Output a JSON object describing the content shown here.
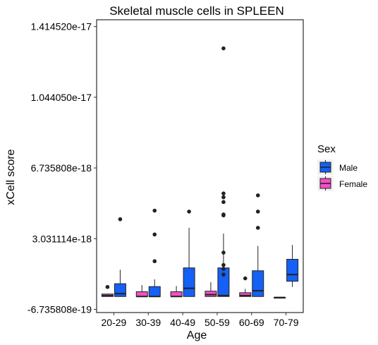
{
  "chart_data": {
    "type": "box",
    "title": "Skeletal muscle cells in SPLEEN",
    "xlabel": "Age",
    "ylabel": "xCell score",
    "categories": [
      "20-29",
      "30-39",
      "40-49",
      "50-59",
      "60-69",
      "70-79"
    ],
    "ylim": [
      -8.4e-19,
      1.45e-17
    ],
    "y_ticks": [
      -6.735808e-19,
      3.031114e-18,
      6.735808e-18,
      1.04405e-17,
      1.41452e-17
    ],
    "y_tick_labels": [
      "-6.735808e-19",
      "3.031114e-18",
      "6.735808e-18",
      "1.044050e-17",
      "1.414520e-17"
    ],
    "grid": false,
    "legend": {
      "title": "Sex",
      "position": "right",
      "entries": [
        {
          "name": "Male",
          "color": "#1560f5"
        },
        {
          "name": "Female",
          "color": "#f24fc4"
        }
      ]
    },
    "series": [
      {
        "name": "Male",
        "color": "#1560f5",
        "boxes": [
          {
            "category": "20-29",
            "whisker_low": 0,
            "q1": 0,
            "median": 1.5e-19,
            "q3": 6.7e-19,
            "whisker_high": 1.4e-18,
            "outliers": [
              4.05e-18
            ]
          },
          {
            "category": "30-39",
            "whisker_low": 0,
            "q1": 0,
            "median": 0,
            "q3": 5.2e-19,
            "whisker_high": 9e-19,
            "outliers": [
              4.5e-18,
              3.25e-18,
              1.85e-18
            ]
          },
          {
            "category": "40-49",
            "whisker_low": 0,
            "q1": 0,
            "median": 4.3e-19,
            "q3": 1.5e-18,
            "whisker_high": 3.6e-18,
            "outliers": [
              4.45e-18
            ]
          },
          {
            "category": "50-59",
            "whisker_low": 0,
            "q1": 0,
            "median": 5e-20,
            "q3": 1.5e-18,
            "whisker_high": 3.3e-18,
            "outliers": [
              1.3e-17,
              5.4e-18,
              5.2e-18,
              4.95e-18,
              4.3e-18,
              4.25e-18,
              2.3e-18,
              1.65e-18,
              1.45e-18,
              1.15e-18
            ]
          },
          {
            "category": "60-69",
            "whisker_low": 0,
            "q1": 0,
            "median": 3e-19,
            "q3": 1.35e-18,
            "whisker_high": 2.65e-18,
            "outliers": [
              5.3e-18,
              4.45e-18,
              3.6e-18
            ]
          },
          {
            "category": "70-79",
            "whisker_low": 5e-19,
            "q1": 8e-19,
            "median": 1.15e-18,
            "q3": 1.95e-18,
            "whisker_high": 2.7e-18,
            "outliers": []
          }
        ]
      },
      {
        "name": "Female",
        "color": "#f24fc4",
        "boxes": [
          {
            "category": "20-29",
            "whisker_low": 0,
            "q1": 0,
            "median": 5e-20,
            "q3": 1.3e-19,
            "whisker_high": 1.3e-19,
            "outliers": [
              5e-19
            ]
          },
          {
            "category": "30-39",
            "whisker_low": 0,
            "q1": 0,
            "median": 0,
            "q3": 2.5e-19,
            "whisker_high": 6e-19,
            "outliers": []
          },
          {
            "category": "40-49",
            "whisker_low": 0,
            "q1": 0,
            "median": 0,
            "q3": 2.5e-19,
            "whisker_high": 5.5e-19,
            "outliers": []
          },
          {
            "category": "50-59",
            "whisker_low": 0,
            "q1": 0,
            "median": 1e-19,
            "q3": 2.8e-19,
            "whisker_high": 7.5e-19,
            "outliers": []
          },
          {
            "category": "60-69",
            "whisker_low": 0,
            "q1": 0,
            "median": 5e-20,
            "q3": 2e-19,
            "whisker_high": 4e-19,
            "outliers": [
              9.5e-19
            ]
          },
          {
            "category": "70-79",
            "whisker_low": -5e-20,
            "q1": -5e-20,
            "median": -5e-20,
            "q3": -5e-20,
            "whisker_high": -5e-20,
            "outliers": []
          }
        ]
      }
    ]
  }
}
